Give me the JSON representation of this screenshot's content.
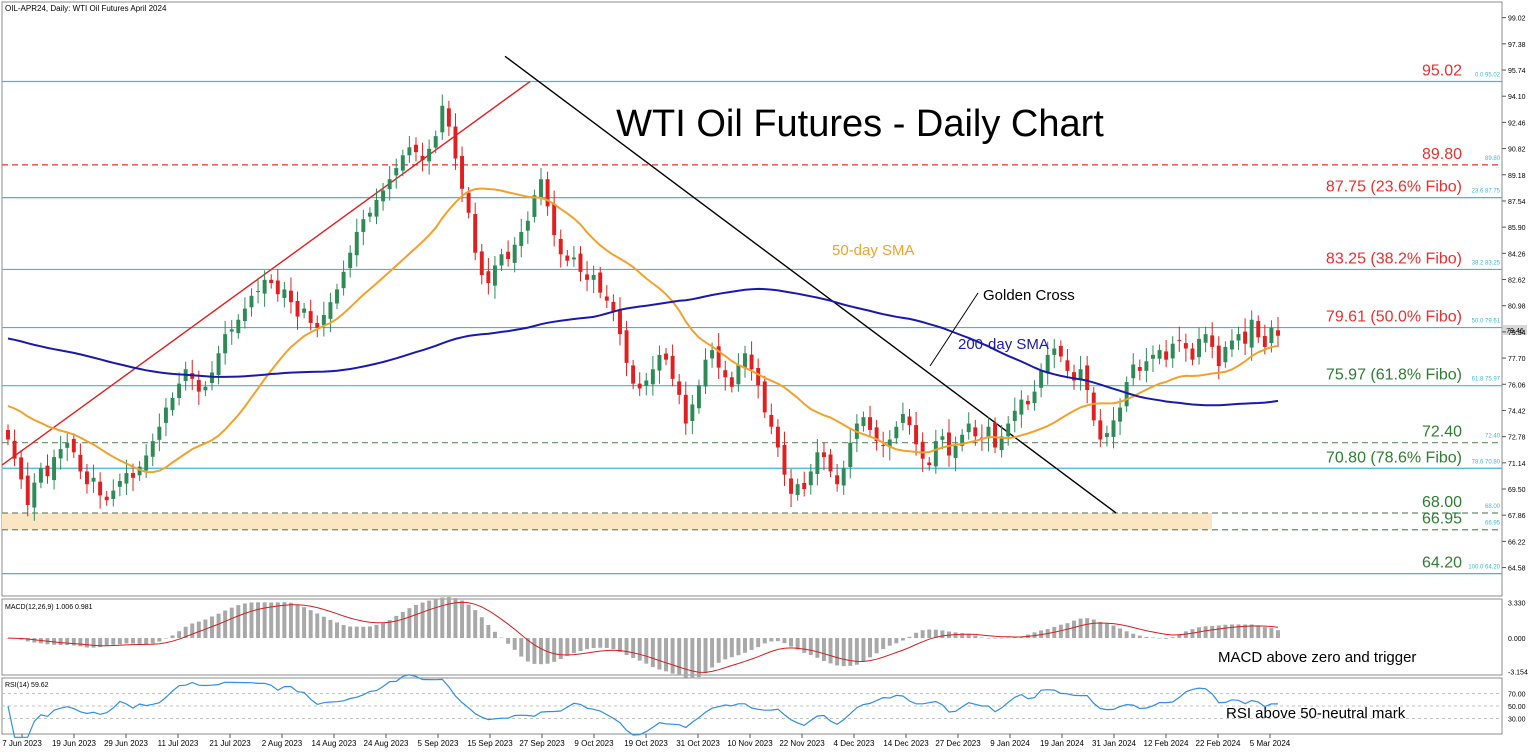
{
  "header": {
    "symbol_label": "OIL-APR24, Daily:  WTI Oil Futures April 2024"
  },
  "title": "WTI Oil Futures - Daily Chart",
  "annotations": {
    "sma50": "50-day SMA",
    "sma200": "200-day SMA",
    "golden_cross": "Golden Cross",
    "macd_note": "MACD above zero and trigger",
    "rsi_note": "RSI above 50-neutral mark"
  },
  "colors": {
    "fibo_line": "#3fb7d6",
    "level_red": "#e83030",
    "level_green": "#2e7d32",
    "up_candle": "#2e8b57",
    "down_candle": "#e02020",
    "sma50": "#f2a22c",
    "sma200": "#1a1aa8",
    "trendline_up": "#e02020",
    "trendline_down": "#000000",
    "support_zone": "#fbe6c3",
    "macd_hist": "#a8a8a8",
    "macd_signal": "#d02020",
    "rsi_line": "#2f8fe0"
  },
  "chart_data": [
    {
      "type": "candlestick",
      "title": "WTI Oil Futures - Daily Chart",
      "ylim": [
        62.8,
        100.0
      ],
      "y_ticks": [
        "99.02",
        "97.38",
        "95.74",
        "94.10",
        "92.46",
        "90.82",
        "89.18",
        "87.54",
        "85.90",
        "84.26",
        "82.62",
        "80.98",
        "79.34",
        "77.70",
        "76.06",
        "74.42",
        "72.78",
        "71.14",
        "69.50",
        "67.86",
        "66.22",
        "64.58"
      ],
      "x_ticks": [
        "7 Jun 2023",
        "19 Jun 2023",
        "29 Jun 2023",
        "11 Jul 2023",
        "21 Jul 2023",
        "2 Aug 2023",
        "14 Aug 2023",
        "24 Aug 2023",
        "5 Sep 2023",
        "15 Sep 2023",
        "27 Sep 2023",
        "9 Oct 2023",
        "19 Oct 2023",
        "31 Oct 2023",
        "10 Nov 2023",
        "22 Nov 2023",
        "4 Dec 2023",
        "14 Dec 2023",
        "27 Dec 2023",
        "9 Jan 2024",
        "19 Jan 2024",
        "31 Jan 2024",
        "12 Feb 2024",
        "22 Feb 2024",
        "5 Mar 2024"
      ],
      "close": [
        72.6,
        71.4,
        70.1,
        68.5,
        69.9,
        70.8,
        70.3,
        71.5,
        72.0,
        72.4,
        71.8,
        70.6,
        69.8,
        70.2,
        69.1,
        68.8,
        69.4,
        70.0,
        70.5,
        70.2,
        70.9,
        71.6,
        72.5,
        73.4,
        74.6,
        75.2,
        76.1,
        77.0,
        76.4,
        75.6,
        75.9,
        76.8,
        78.0,
        79.2,
        79.5,
        80.1,
        80.8,
        81.6,
        81.9,
        82.6,
        82.4,
        81.7,
        82.0,
        81.2,
        80.3,
        80.8,
        79.9,
        79.6,
        80.4,
        81.2,
        82.0,
        83.1,
        84.3,
        85.6,
        86.4,
        86.8,
        87.6,
        88.2,
        88.9,
        89.6,
        90.4,
        90.9,
        90.6,
        90.1,
        90.8,
        91.6,
        93.5,
        92.2,
        90.2,
        88.3,
        86.8,
        84.3,
        82.9,
        82.4,
        83.5,
        84.2,
        83.9,
        84.8,
        85.6,
        86.3,
        87.9,
        88.9,
        87.2,
        85.4,
        84.2,
        83.8,
        84.0,
        83.1,
        82.6,
        82.9,
        81.8,
        81.3,
        80.6,
        79.2,
        77.4,
        76.1,
        75.8,
        76.3,
        77.0,
        77.9,
        77.6,
        76.4,
        75.4,
        73.6,
        74.8,
        76.0,
        77.6,
        78.2,
        77.1,
        76.5,
        75.9,
        77.3,
        78.0,
        77.0,
        76.0,
        74.3,
        73.4,
        72.1,
        70.4,
        69.2,
        69.8,
        69.5,
        70.6,
        71.8,
        71.5,
        70.6,
        69.8,
        70.8,
        72.4,
        73.6,
        74.0,
        73.2,
        72.5,
        72.2,
        72.6,
        73.4,
        74.2,
        73.5,
        72.3,
        71.4,
        71.0,
        72.5,
        72.8,
        71.6,
        72.2,
        72.9,
        73.6,
        72.8,
        72.6,
        73.4,
        72.1,
        72.8,
        73.6,
        74.4,
        75.1,
        74.8,
        75.6,
        76.9,
        77.9,
        78.3,
        77.8,
        76.9,
        76.3,
        77.0,
        75.7,
        73.8,
        72.6,
        73.0,
        73.8,
        74.6,
        76.2,
        77.3,
        76.9,
        77.5,
        77.9,
        78.2,
        77.6,
        78.6,
        78.8,
        78.3,
        77.6,
        78.9,
        79.2,
        78.4,
        77.2,
        78.4,
        78.8,
        79.2,
        78.6,
        80.1,
        79.0,
        78.4,
        79.6,
        79.1
      ]
    },
    {
      "type": "horizontal_levels",
      "levels": [
        {
          "value": 95.02,
          "label": "95.02",
          "right_label": "0.0 95.02",
          "style": "fibo"
        },
        {
          "value": 89.8,
          "label": "89.80",
          "right_label": "89.80",
          "style": "red-dashed"
        },
        {
          "value": 87.75,
          "label": "87.75 (23.6% Fibo)",
          "right_label": "23.6 87.75",
          "style": "fibo"
        },
        {
          "value": 83.25,
          "label": "83.25 (38.2% Fibo)",
          "right_label": "38.2 83.25",
          "style": "fibo"
        },
        {
          "value": 79.61,
          "label": "79.61 (50.0% Fibo)",
          "right_label": "50.0 79.61",
          "style": "fibo"
        },
        {
          "value": 75.97,
          "label": "75.97 (61.8% Fibo)",
          "right_label": "61.8 75.97",
          "style": "fibo"
        },
        {
          "value": 72.4,
          "label": "72.40",
          "right_label": "72.40",
          "style": "green-dashed"
        },
        {
          "value": 70.8,
          "label": "70.80 (78.6% Fibo)",
          "right_label": "78.6 70.80",
          "style": "fibo"
        },
        {
          "value": 68.0,
          "label": "68.00",
          "right_label": "68.00",
          "style": "green-dashed"
        },
        {
          "value": 66.95,
          "label": "66.95",
          "right_label": "66.95",
          "style": "green-dashed"
        },
        {
          "value": 64.2,
          "label": "64.20",
          "right_label": "100.0 64.20",
          "style": "fibo"
        }
      ],
      "current_price_tag": "79.46"
    },
    {
      "type": "bar",
      "name": "MACD(12,26,9) 1.006 0.981",
      "y_ticks": [
        "3.330",
        "0.000",
        "-3.154"
      ],
      "ylim": [
        -3.2,
        3.4
      ]
    },
    {
      "type": "line",
      "name": "RSI(14) 59.62",
      "y_ticks": [
        "70.00",
        "50.00",
        "30.00"
      ],
      "ylim": [
        10,
        90
      ]
    }
  ]
}
